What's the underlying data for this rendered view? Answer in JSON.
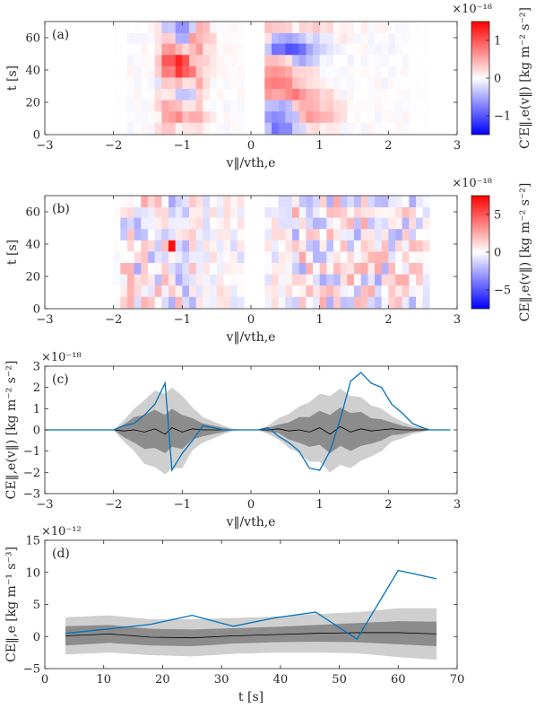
{
  "chart_data": [
    {
      "panel": "(a)",
      "type": "heatmap",
      "xlabel": "v‖/vth,e",
      "ylabel": "t [s]",
      "xlim": [
        -3,
        3
      ],
      "ylim": [
        0,
        70
      ],
      "xticks": [
        -3,
        -2,
        -1,
        0,
        1,
        2,
        3
      ],
      "yticks": [
        0,
        20,
        40,
        60
      ],
      "colorbar": {
        "label": "C′E‖,e(v‖) [kg m⁻² s⁻²]",
        "exponent": "×10⁻¹⁸",
        "ticks": [
          -1,
          0,
          1
        ],
        "range": [
          -1.5,
          1.5
        ]
      },
      "cmap": "blue-white-red",
      "description_rows": [
        {
          "t": 67,
          "v": [
            0,
            0,
            0,
            0,
            0,
            0.1,
            -0.3,
            -0.6,
            -0.5,
            -0.3,
            0.4,
            0.3,
            0.1,
            0,
            0,
            0,
            0,
            0,
            0.2,
            0.3,
            0.3,
            0.2,
            0.1,
            0.2,
            0.2,
            0.3,
            0.2,
            0.1,
            0.1,
            0.1,
            0.05,
            0.1,
            0,
            0,
            0,
            0,
            0,
            0,
            0,
            0
          ]
        },
        {
          "t": 60,
          "v": [
            0,
            0,
            0,
            0,
            0,
            0.2,
            0.3,
            -0.4,
            -0.4,
            0.5,
            0.4,
            0.3,
            0.2,
            0,
            0,
            0,
            0,
            0,
            0.3,
            0.2,
            -0.4,
            -0.5,
            -0.4,
            -0.3,
            -0.2,
            -0.2,
            -0.1,
            0.1,
            0.1,
            0.05,
            0,
            0,
            0,
            0,
            0,
            0,
            0,
            0,
            0,
            0
          ]
        },
        {
          "t": 53,
          "v": [
            0,
            0,
            0,
            0,
            0,
            0.2,
            0.6,
            0.4,
            0.2,
            0.3,
            0.5,
            0.2,
            0.1,
            0,
            0,
            0,
            0,
            0,
            0.2,
            -0.3,
            -0.8,
            -0.9,
            -0.9,
            -0.7,
            -0.5,
            -0.3,
            -0.2,
            -0.1,
            0,
            0,
            0,
            0,
            0,
            0,
            0,
            0,
            0,
            0,
            0,
            0
          ]
        },
        {
          "t": 46,
          "v": [
            0,
            0,
            0,
            0,
            0,
            0.3,
            0.9,
            1.2,
            1.0,
            0.4,
            0.3,
            0.2,
            0.1,
            0,
            0,
            0,
            0,
            0,
            0.2,
            0.4,
            0.3,
            0.2,
            -0.3,
            -0.4,
            -0.3,
            -0.2,
            -0.1,
            0,
            0,
            0,
            0,
            0,
            0,
            0,
            0,
            0,
            0,
            0,
            0,
            0
          ]
        },
        {
          "t": 39,
          "v": [
            0,
            0,
            0,
            0,
            0,
            0.2,
            0.7,
            1.1,
            0.9,
            0.7,
            0.3,
            0.2,
            0.1,
            0,
            0,
            0,
            0,
            0,
            0.3,
            0.5,
            0.6,
            0.5,
            0.3,
            0.2,
            0.2,
            0.1,
            0,
            0,
            0,
            0,
            0,
            0,
            0,
            0,
            0,
            0,
            0,
            0,
            0,
            0
          ]
        },
        {
          "t": 32,
          "v": [
            0,
            0,
            0,
            0,
            0,
            -0.1,
            0.3,
            0.3,
            0.1,
            0.2,
            0.4,
            0.2,
            0,
            0,
            0,
            0,
            0,
            0,
            0.4,
            0.6,
            0.7,
            0.6,
            0.4,
            0.3,
            0.2,
            0.1,
            0.1,
            0,
            0,
            0,
            0,
            0,
            0,
            0,
            0,
            0,
            0,
            0,
            0,
            0
          ]
        },
        {
          "t": 25,
          "v": [
            0,
            0,
            0,
            0,
            0,
            0.2,
            0.1,
            -0.3,
            -0.3,
            -0.2,
            0.2,
            0.1,
            0,
            0,
            0,
            0,
            0,
            0,
            0.3,
            0.5,
            0.5,
            0.6,
            0.7,
            0.5,
            0.4,
            0.3,
            0.2,
            0.1,
            0,
            0,
            0,
            0,
            0,
            0,
            0,
            0,
            0,
            0,
            0,
            0
          ]
        },
        {
          "t": 18,
          "v": [
            0,
            0,
            0,
            0,
            0,
            0.3,
            0.4,
            0.3,
            0.1,
            0.2,
            0.3,
            0.1,
            0,
            0,
            0,
            0,
            0,
            0,
            0.2,
            -0.3,
            -0.4,
            -0.3,
            0.2,
            0.4,
            0.5,
            0.4,
            0.3,
            0.2,
            0.1,
            0,
            0,
            0,
            0,
            0,
            0,
            0,
            0,
            0,
            0,
            0
          ]
        },
        {
          "t": 11,
          "v": [
            0,
            0,
            0,
            0,
            0,
            0.1,
            0.5,
            0.6,
            0.3,
            0.4,
            0.4,
            0.2,
            0.1,
            0,
            0,
            0,
            0,
            0,
            0.2,
            -0.5,
            -0.6,
            -0.4,
            -0.3,
            0.3,
            0.5,
            0.5,
            0.4,
            0.3,
            0.1,
            0,
            0,
            0,
            0,
            0,
            0,
            0,
            0,
            0,
            0,
            0
          ]
        },
        {
          "t": 4,
          "v": [
            0,
            0,
            0,
            0,
            0,
            0.2,
            0.3,
            0.1,
            0.2,
            0.1,
            0.2,
            0.1,
            0,
            0,
            0,
            0,
            0,
            0,
            0.2,
            -0.3,
            -0.7,
            -0.6,
            -0.3,
            -0.2,
            0.2,
            0.2,
            0.1,
            0.1,
            0,
            0,
            0,
            0,
            0,
            0,
            0,
            0,
            0,
            0,
            0,
            0
          ]
        }
      ]
    },
    {
      "panel": "(b)",
      "type": "heatmap",
      "xlabel": "v‖/vth,e",
      "ylabel": "t [s]",
      "xlim": [
        -3,
        3
      ],
      "ylim": [
        0,
        70
      ],
      "xticks": [
        -3,
        -2,
        -1,
        0,
        1,
        2,
        3
      ],
      "yticks": [
        0,
        20,
        40,
        60
      ],
      "colorbar": {
        "label": "CE‖,e(v‖) [kg m⁻² s⁻²]",
        "exponent": "×10⁻¹⁸",
        "ticks": [
          -5,
          0,
          5
        ],
        "range": [
          -7.5,
          7.5
        ]
      },
      "cmap": "blue-white-red"
    },
    {
      "panel": "(c)",
      "type": "line",
      "xlabel": "v‖/vth,e",
      "ylabel": "CE‖,e(v‖) [kg m⁻² s⁻²]",
      "exponent": "×10⁻¹⁸",
      "xlim": [
        -3,
        3
      ],
      "ylim": [
        -3,
        3
      ],
      "xticks": [
        -3,
        -2,
        -1,
        0,
        1,
        2,
        3
      ],
      "yticks": [
        -3,
        -2,
        -1,
        0,
        1,
        2,
        3
      ],
      "x": [
        -3.0,
        -2.0,
        -1.85,
        -1.7,
        -1.55,
        -1.4,
        -1.25,
        -1.15,
        -1.0,
        -0.85,
        -0.7,
        -0.55,
        -0.4,
        -0.25,
        -0.1,
        0.1,
        0.25,
        0.4,
        0.55,
        0.7,
        0.85,
        1.0,
        1.15,
        1.3,
        1.45,
        1.6,
        1.75,
        1.9,
        2.05,
        2.2,
        2.35,
        2.5,
        2.6,
        2.9
      ],
      "series": [
        {
          "values": [
            0,
            0,
            0.2,
            0.3,
            0.7,
            1.2,
            2.2,
            -1.9,
            -1.1,
            -0.5,
            0.2,
            0.1,
            0,
            0,
            0,
            0,
            0.1,
            -0.3,
            -0.6,
            -1.0,
            -1.8,
            -1.9,
            -1.0,
            0.5,
            2.3,
            2.7,
            2.2,
            2.0,
            1.2,
            0.8,
            0.3,
            0.1,
            0,
            0
          ]
        },
        {
          "values": [
            0,
            0,
            -0.05,
            0,
            -0.1,
            0.05,
            -0.2,
            0.1,
            -0.1,
            0.05,
            0,
            0,
            0,
            0,
            0,
            0,
            0,
            0.05,
            -0.05,
            0,
            -0.1,
            0.1,
            -0.2,
            0.15,
            -0.1,
            0.05,
            -0.05,
            0,
            0.05,
            0,
            0,
            0,
            0,
            0
          ]
        }
      ],
      "band_inner": [
        0,
        0,
        0.3,
        0.6,
        0.8,
        0.9,
        0.9,
        0.9,
        0.8,
        0.5,
        0.3,
        0.2,
        0.1,
        0,
        0,
        0,
        0.1,
        0.2,
        0.4,
        0.6,
        0.7,
        0.8,
        0.9,
        0.9,
        0.9,
        0.8,
        0.6,
        0.5,
        0.3,
        0.2,
        0.1,
        0.05,
        0,
        0
      ],
      "band_outer": [
        0,
        0,
        0.5,
        1.0,
        1.5,
        1.8,
        1.9,
        1.9,
        1.7,
        1.0,
        0.6,
        0.4,
        0.2,
        0.05,
        0,
        0,
        0.2,
        0.5,
        0.8,
        1.1,
        1.4,
        1.6,
        1.8,
        1.8,
        1.7,
        1.5,
        1.2,
        1.0,
        0.6,
        0.4,
        0.2,
        0.1,
        0,
        0
      ]
    },
    {
      "panel": "(d)",
      "type": "line",
      "xlabel": "t [s]",
      "ylabel": "CE‖,e [kg m⁻¹ s⁻³]",
      "exponent": "×10⁻¹²",
      "xlim": [
        0,
        70
      ],
      "ylim": [
        -5,
        15
      ],
      "xticks": [
        0,
        10,
        20,
        30,
        40,
        50,
        60,
        70
      ],
      "yticks": [
        -5,
        0,
        5,
        10,
        15
      ],
      "x": [
        3.5,
        11,
        18,
        25,
        32,
        39,
        46,
        53,
        60,
        66.5
      ],
      "series": [
        {
          "values": [
            0.5,
            1.2,
            1.9,
            3.3,
            1.6,
            2.9,
            3.8,
            -0.4,
            10.3,
            9.0
          ]
        },
        {
          "values": [
            0.1,
            0.4,
            -0.1,
            -0.2,
            0.1,
            0.3,
            0.5,
            0.6,
            0.6,
            0.4
          ]
        }
      ],
      "band_inner": [
        1.5,
        1.4,
        1.3,
        1.3,
        1.2,
        1.2,
        1.3,
        1.5,
        1.8,
        1.9
      ],
      "band_outer": [
        2.9,
        2.9,
        2.8,
        2.9,
        2.8,
        2.8,
        3.0,
        3.2,
        3.8,
        4.0
      ]
    }
  ]
}
